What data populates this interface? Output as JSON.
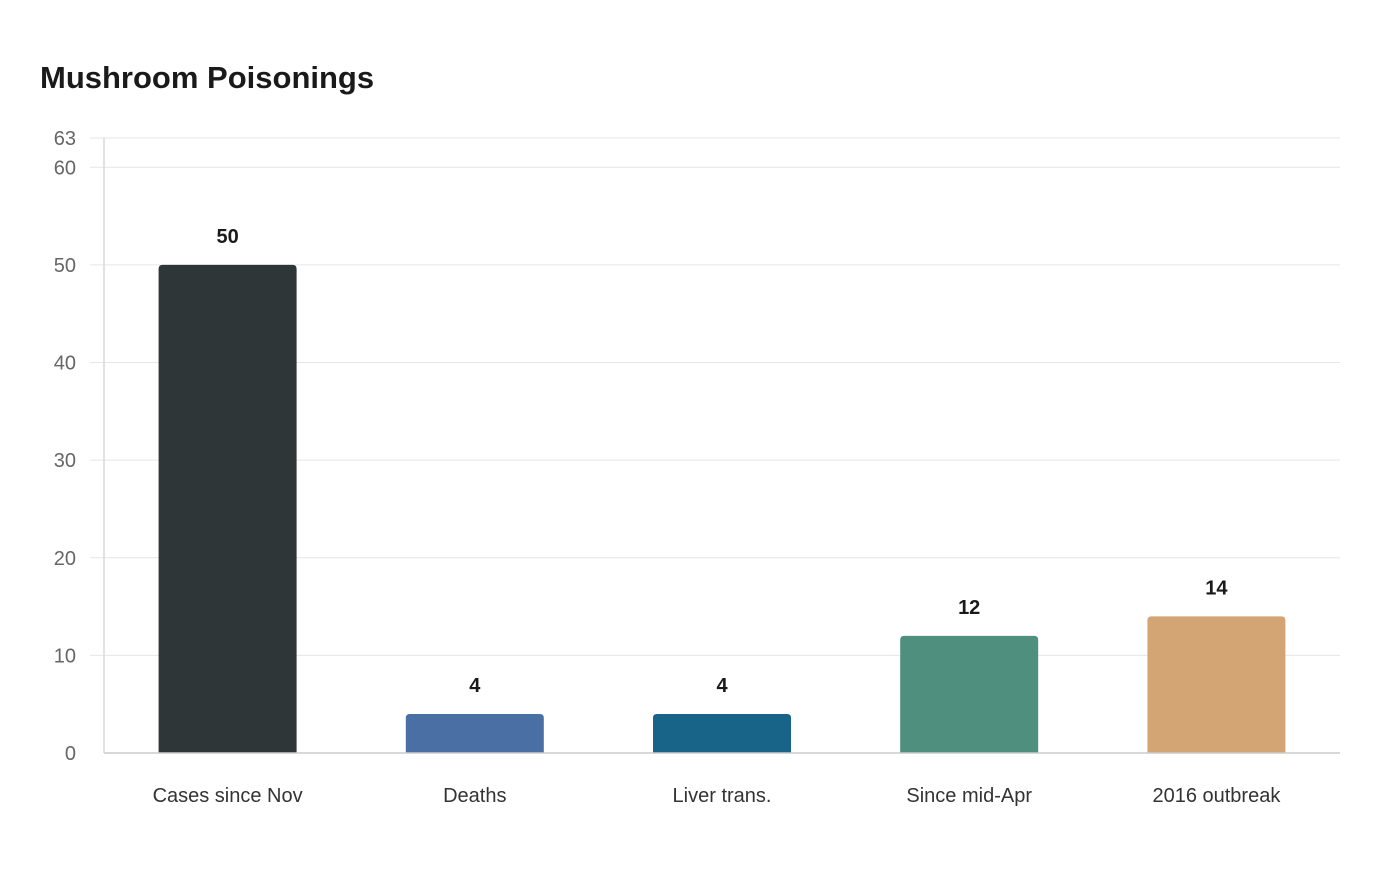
{
  "chart_data": {
    "type": "bar",
    "title": "Mushroom Poisonings",
    "xlabel": "",
    "ylabel": "",
    "categories": [
      "Cases since Nov",
      "Deaths",
      "Liver trans.",
      "Since mid-Apr",
      "2016 outbreak"
    ],
    "values": [
      50,
      4,
      4,
      12,
      14
    ],
    "colors": [
      "#2e3638",
      "#4a6fa5",
      "#186388",
      "#4f8f7d",
      "#d4a574"
    ],
    "ylim": [
      0,
      63
    ],
    "yticks": [
      0,
      10,
      20,
      30,
      40,
      50,
      60,
      63
    ],
    "grid": true,
    "legend": "none"
  }
}
